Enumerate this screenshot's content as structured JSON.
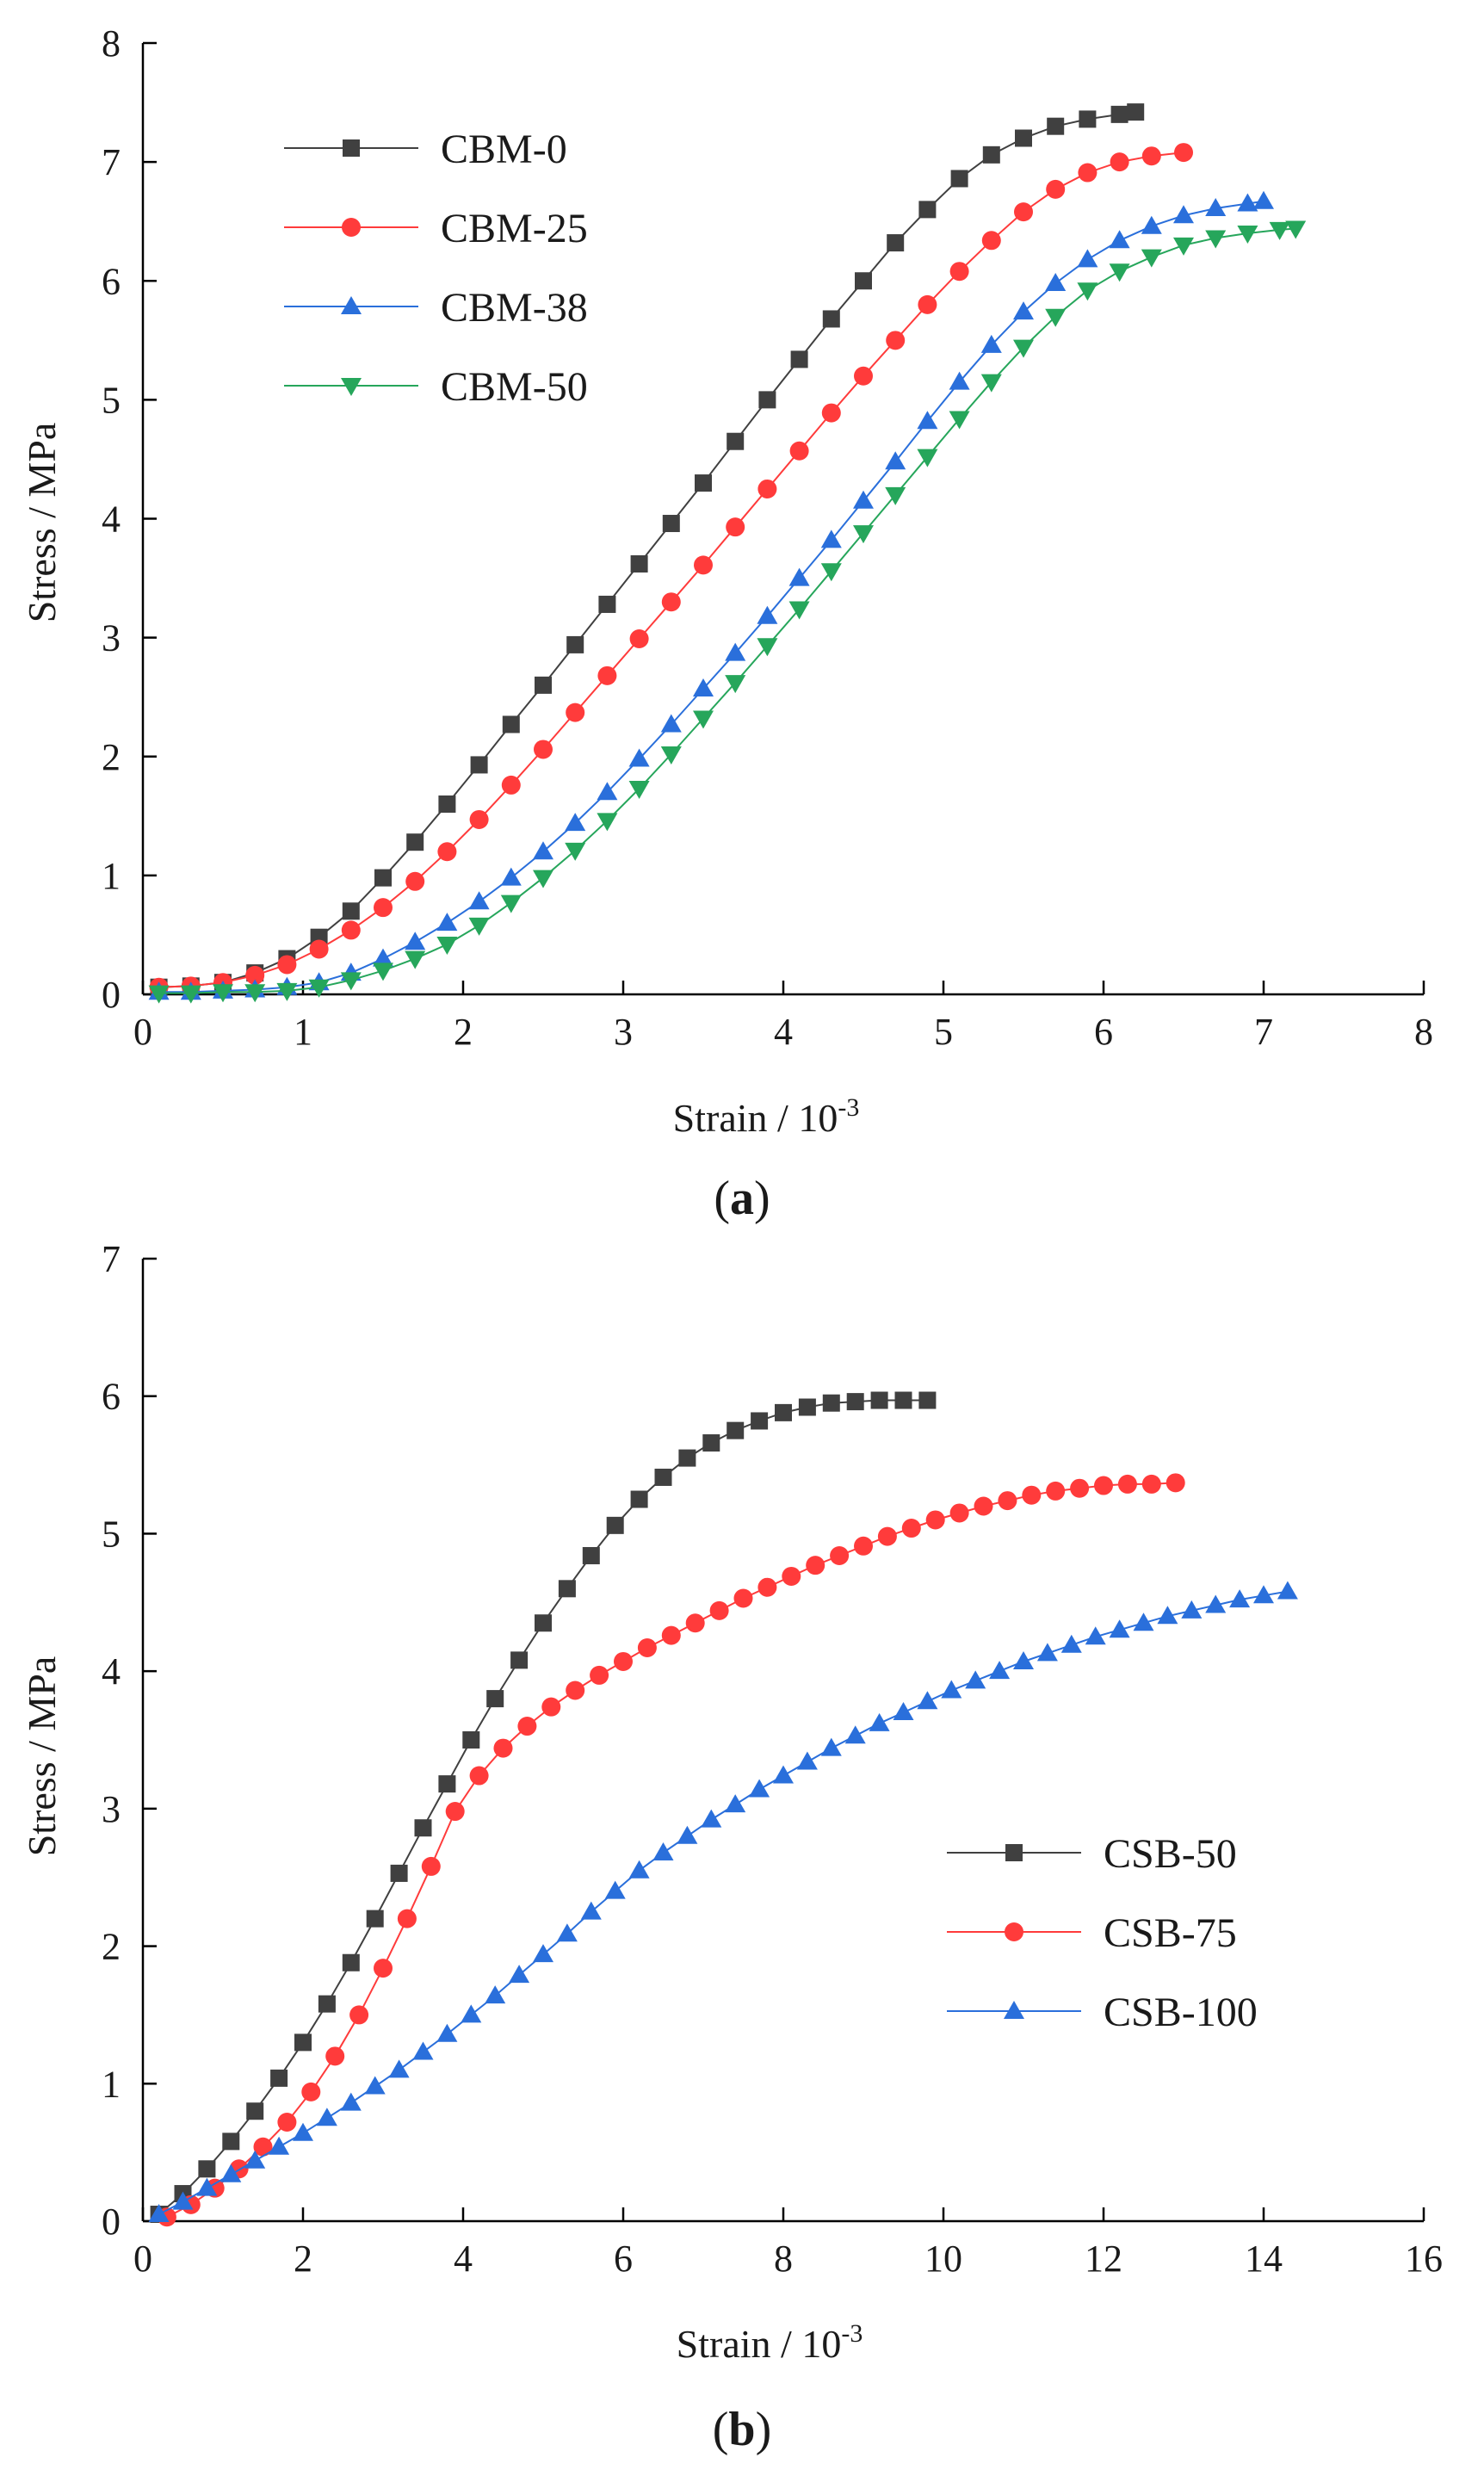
{
  "chart_data": [
    {
      "type": "line",
      "panel_label": "a",
      "xlabel": "Strain / 10",
      "xlabel_exponent": "-3",
      "ylabel": "Stress / MPa",
      "xlim": [
        0,
        8
      ],
      "ylim": [
        0,
        8
      ],
      "xticks": [
        0,
        1,
        2,
        3,
        4,
        5,
        6,
        7,
        8
      ],
      "yticks": [
        0,
        1,
        2,
        3,
        4,
        5,
        6,
        7,
        8
      ],
      "legend_position": "top-left",
      "series": [
        {
          "name": "CBM-0",
          "color": "#404040",
          "marker": "square",
          "x": [
            0.1,
            0.3,
            0.5,
            0.7,
            0.9,
            1.1,
            1.3,
            1.5,
            1.7,
            1.9,
            2.1,
            2.3,
            2.5,
            2.7,
            2.9,
            3.1,
            3.3,
            3.5,
            3.7,
            3.9,
            4.1,
            4.3,
            4.5,
            4.7,
            4.9,
            5.1,
            5.3,
            5.5,
            5.7,
            5.9,
            6.1,
            6.2
          ],
          "y": [
            0.06,
            0.07,
            0.1,
            0.18,
            0.3,
            0.48,
            0.7,
            0.98,
            1.28,
            1.6,
            1.93,
            2.27,
            2.6,
            2.94,
            3.28,
            3.62,
            3.96,
            4.3,
            4.65,
            5.0,
            5.34,
            5.68,
            6.0,
            6.32,
            6.6,
            6.86,
            7.06,
            7.2,
            7.3,
            7.36,
            7.4,
            7.42
          ]
        },
        {
          "name": "CBM-25",
          "color": "#ff3b3b",
          "marker": "circle",
          "x": [
            0.1,
            0.3,
            0.5,
            0.7,
            0.9,
            1.1,
            1.3,
            1.5,
            1.7,
            1.9,
            2.1,
            2.3,
            2.5,
            2.7,
            2.9,
            3.1,
            3.3,
            3.5,
            3.7,
            3.9,
            4.1,
            4.3,
            4.5,
            4.7,
            4.9,
            5.1,
            5.3,
            5.5,
            5.7,
            5.9,
            6.1,
            6.3,
            6.5
          ],
          "y": [
            0.06,
            0.07,
            0.1,
            0.16,
            0.25,
            0.38,
            0.54,
            0.73,
            0.95,
            1.2,
            1.47,
            1.76,
            2.06,
            2.37,
            2.68,
            2.99,
            3.3,
            3.61,
            3.93,
            4.25,
            4.57,
            4.89,
            5.2,
            5.5,
            5.8,
            6.08,
            6.34,
            6.58,
            6.77,
            6.91,
            7.0,
            7.05,
            7.08
          ]
        },
        {
          "name": "CBM-38",
          "color": "#2a6fdb",
          "marker": "triangle-up",
          "x": [
            0.1,
            0.3,
            0.5,
            0.7,
            0.9,
            1.1,
            1.3,
            1.5,
            1.7,
            1.9,
            2.1,
            2.3,
            2.5,
            2.7,
            2.9,
            3.1,
            3.3,
            3.5,
            3.7,
            3.9,
            4.1,
            4.3,
            4.5,
            4.7,
            4.9,
            5.1,
            5.3,
            5.5,
            5.7,
            5.9,
            6.1,
            6.3,
            6.5,
            6.7,
            6.9,
            7.0
          ],
          "y": [
            0.02,
            0.02,
            0.03,
            0.04,
            0.06,
            0.1,
            0.18,
            0.3,
            0.44,
            0.6,
            0.78,
            0.98,
            1.2,
            1.44,
            1.7,
            1.98,
            2.27,
            2.57,
            2.87,
            3.18,
            3.5,
            3.82,
            4.15,
            4.48,
            4.82,
            5.15,
            5.46,
            5.74,
            5.98,
            6.18,
            6.34,
            6.46,
            6.55,
            6.61,
            6.65,
            6.67
          ]
        },
        {
          "name": "CBM-50",
          "color": "#26a65b",
          "marker": "triangle-down",
          "x": [
            0.1,
            0.3,
            0.5,
            0.7,
            0.9,
            1.1,
            1.3,
            1.5,
            1.7,
            1.9,
            2.1,
            2.3,
            2.5,
            2.7,
            2.9,
            3.1,
            3.3,
            3.5,
            3.7,
            3.9,
            4.1,
            4.3,
            4.5,
            4.7,
            4.9,
            5.1,
            5.3,
            5.5,
            5.7,
            5.9,
            6.1,
            6.3,
            6.5,
            6.7,
            6.9,
            7.1,
            7.2
          ],
          "y": [
            0.01,
            0.01,
            0.02,
            0.02,
            0.03,
            0.06,
            0.12,
            0.2,
            0.3,
            0.42,
            0.58,
            0.77,
            0.98,
            1.21,
            1.46,
            1.73,
            2.02,
            2.32,
            2.62,
            2.93,
            3.24,
            3.56,
            3.88,
            4.2,
            4.52,
            4.84,
            5.15,
            5.44,
            5.7,
            5.92,
            6.08,
            6.2,
            6.3,
            6.36,
            6.4,
            6.43,
            6.44
          ]
        }
      ]
    },
    {
      "type": "line",
      "panel_label": "b",
      "xlabel": "Strain / 10",
      "xlabel_exponent": "-3",
      "ylabel": "Stress / MPa",
      "xlim": [
        0,
        16
      ],
      "ylim": [
        0,
        7
      ],
      "xticks": [
        0,
        2,
        4,
        6,
        8,
        10,
        12,
        14,
        16
      ],
      "yticks": [
        0,
        1,
        2,
        3,
        4,
        5,
        6,
        7
      ],
      "legend_position": "bottom-right",
      "series": [
        {
          "name": "CSB-50",
          "color": "#404040",
          "marker": "square",
          "x": [
            0.2,
            0.5,
            0.8,
            1.1,
            1.4,
            1.7,
            2.0,
            2.3,
            2.6,
            2.9,
            3.2,
            3.5,
            3.8,
            4.1,
            4.4,
            4.7,
            5.0,
            5.3,
            5.6,
            5.9,
            6.2,
            6.5,
            6.8,
            7.1,
            7.4,
            7.7,
            8.0,
            8.3,
            8.6,
            8.9,
            9.2,
            9.5,
            9.8
          ],
          "y": [
            0.05,
            0.2,
            0.38,
            0.58,
            0.8,
            1.04,
            1.3,
            1.58,
            1.88,
            2.2,
            2.53,
            2.86,
            3.18,
            3.5,
            3.8,
            4.08,
            4.35,
            4.6,
            4.84,
            5.06,
            5.25,
            5.41,
            5.55,
            5.66,
            5.75,
            5.82,
            5.88,
            5.92,
            5.95,
            5.96,
            5.97,
            5.97,
            5.97
          ]
        },
        {
          "name": "CSB-75",
          "color": "#ff3b3b",
          "marker": "circle",
          "x": [
            0.3,
            0.6,
            0.9,
            1.2,
            1.5,
            1.8,
            2.1,
            2.4,
            2.7,
            3.0,
            3.3,
            3.6,
            3.9,
            4.2,
            4.5,
            4.8,
            5.1,
            5.4,
            5.7,
            6.0,
            6.3,
            6.6,
            6.9,
            7.2,
            7.5,
            7.8,
            8.1,
            8.4,
            8.7,
            9.0,
            9.3,
            9.6,
            9.9,
            10.2,
            10.5,
            10.8,
            11.1,
            11.4,
            11.7,
            12.0,
            12.3,
            12.6,
            12.9
          ],
          "y": [
            0.03,
            0.12,
            0.24,
            0.38,
            0.54,
            0.72,
            0.94,
            1.2,
            1.5,
            1.84,
            2.2,
            2.58,
            2.98,
            3.24,
            3.44,
            3.6,
            3.74,
            3.86,
            3.97,
            4.07,
            4.17,
            4.26,
            4.35,
            4.44,
            4.53,
            4.61,
            4.69,
            4.77,
            4.84,
            4.91,
            4.98,
            5.04,
            5.1,
            5.15,
            5.2,
            5.24,
            5.28,
            5.31,
            5.33,
            5.35,
            5.36,
            5.36,
            5.37
          ]
        },
        {
          "name": "CSB-100",
          "color": "#2a6fdb",
          "marker": "triangle-up",
          "x": [
            0.2,
            0.5,
            0.8,
            1.1,
            1.4,
            1.7,
            2.0,
            2.3,
            2.6,
            2.9,
            3.2,
            3.5,
            3.8,
            4.1,
            4.4,
            4.7,
            5.0,
            5.3,
            5.6,
            5.9,
            6.2,
            6.5,
            6.8,
            7.1,
            7.4,
            7.7,
            8.0,
            8.3,
            8.6,
            8.9,
            9.2,
            9.5,
            9.8,
            10.1,
            10.4,
            10.7,
            11.0,
            11.3,
            11.6,
            11.9,
            12.2,
            12.5,
            12.8,
            13.1,
            13.4,
            13.7,
            14.0,
            14.3
          ],
          "y": [
            0.05,
            0.14,
            0.24,
            0.34,
            0.44,
            0.54,
            0.64,
            0.75,
            0.86,
            0.98,
            1.1,
            1.23,
            1.36,
            1.5,
            1.64,
            1.79,
            1.94,
            2.09,
            2.25,
            2.4,
            2.55,
            2.68,
            2.8,
            2.92,
            3.03,
            3.14,
            3.24,
            3.34,
            3.44,
            3.53,
            3.62,
            3.7,
            3.78,
            3.86,
            3.93,
            4.0,
            4.07,
            4.13,
            4.19,
            4.25,
            4.3,
            4.35,
            4.4,
            4.44,
            4.48,
            4.52,
            4.55,
            4.58
          ]
        }
      ]
    }
  ]
}
